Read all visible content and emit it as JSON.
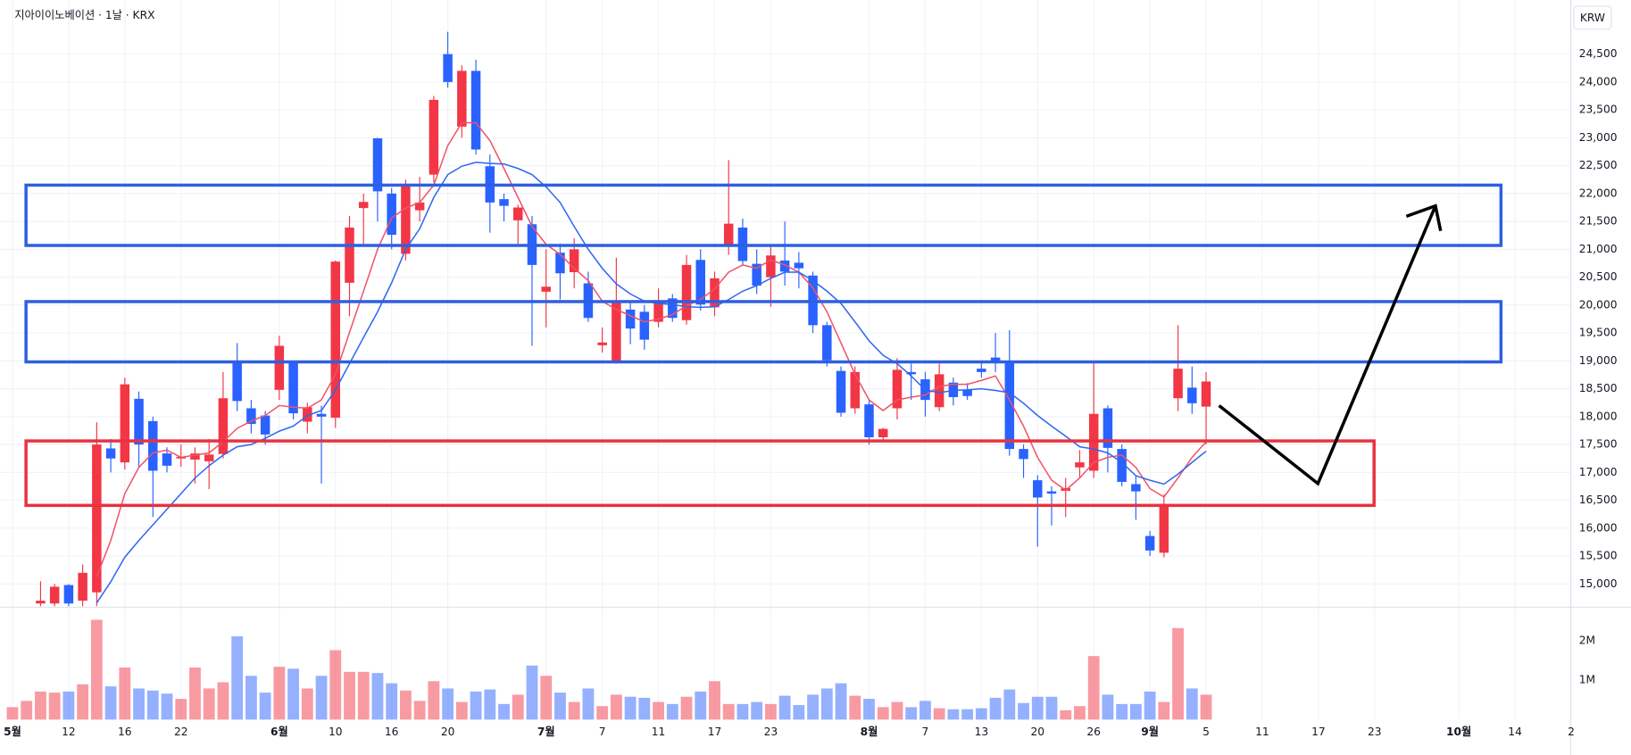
{
  "chart_data": {
    "type": "candlestick",
    "title": "지아이이노베이션 · 1날 · KRX",
    "currency": "KRW",
    "grid": true,
    "up_color": "#f23645",
    "down_color": "#2962ff",
    "categories": [
      "5월",
      null,
      null,
      null,
      "12",
      null,
      null,
      null,
      "16",
      null,
      null,
      null,
      "22",
      null,
      null,
      null,
      null,
      null,
      null,
      "6월",
      null,
      null,
      null,
      "10",
      null,
      null,
      null,
      "16",
      null,
      null,
      null,
      "20",
      null,
      null,
      null,
      null,
      null,
      null,
      "7월",
      null,
      null,
      null,
      "7",
      null,
      null,
      null,
      "11",
      null,
      null,
      null,
      "17",
      null,
      null,
      null,
      "23",
      null,
      null,
      null,
      null,
      null,
      null,
      "8월",
      null,
      null,
      null,
      "7",
      null,
      null,
      null,
      "13",
      null,
      null,
      null,
      "20",
      null,
      null,
      null,
      "26",
      null,
      null,
      null,
      "9월",
      null,
      null,
      null,
      "5",
      null,
      null,
      null,
      "11",
      null,
      null,
      null,
      "17",
      null,
      null,
      null,
      "23",
      null,
      null,
      null,
      null,
      null,
      "10월",
      null,
      null,
      null,
      "14",
      null,
      null,
      null,
      "2"
    ],
    "open": [
      null,
      null,
      14650,
      14650,
      14980,
      14700,
      14850,
      17430,
      17180,
      18320,
      17920,
      17340,
      17250,
      17230,
      17200,
      17330,
      18990,
      18150,
      18020,
      18480,
      18990,
      17910,
      18050,
      17980,
      20400,
      21740,
      22990,
      22000,
      20920,
      21700,
      22340,
      24500,
      23200,
      24200,
      22490,
      21900,
      21520,
      21450,
      20240,
      20940,
      20590,
      20390,
      19280,
      19000,
      19920,
      19880,
      19700,
      20120,
      19730,
      20810,
      19960,
      21050,
      21390,
      20740,
      20500,
      20800,
      20760,
      20530,
      19640,
      18820,
      18150,
      18220,
      17630,
      18150,
      18800,
      18670,
      18170,
      18610,
      18480,
      18860,
      19060,
      18990,
      17420,
      16860,
      16660,
      16670,
      17090,
      17030,
      18150,
      17420,
      16790,
      15860,
      15560,
      18330,
      18520,
      18180,
      null,
      null,
      null,
      null,
      null,
      null,
      null,
      null,
      null,
      null,
      null,
      null,
      null,
      null,
      null,
      null,
      null,
      null,
      null,
      null,
      null,
      null,
      null,
      null,
      null,
      null
    ],
    "high": [
      null,
      null,
      15050,
      15000,
      15000,
      15350,
      17900,
      17600,
      18700,
      18450,
      18000,
      17450,
      17500,
      17450,
      17600,
      18800,
      19320,
      18300,
      18100,
      19450,
      19000,
      18250,
      18200,
      20800,
      21600,
      22000,
      23000,
      22100,
      22250,
      22300,
      23750,
      24900,
      24300,
      24400,
      22700,
      22000,
      21800,
      21600,
      21000,
      21100,
      21200,
      20600,
      19600,
      20850,
      20050,
      20000,
      20300,
      20200,
      20900,
      21000,
      20600,
      22600,
      21550,
      21000,
      21050,
      21500,
      20950,
      20600,
      19700,
      18900,
      18900,
      18300,
      17800,
      19050,
      18950,
      18800,
      18950,
      18700,
      18600,
      19000,
      19500,
      19550,
      17500,
      16950,
      16750,
      16900,
      17400,
      18990,
      18200,
      17500,
      16950,
      15950,
      16600,
      19640,
      18900,
      18800,
      null,
      null,
      null,
      null,
      null,
      null,
      null,
      null,
      null,
      null,
      null,
      null,
      null,
      null,
      null,
      null,
      null,
      null,
      null,
      null,
      null,
      null,
      null,
      null,
      null,
      null
    ],
    "low": [
      null,
      null,
      14600,
      14600,
      14600,
      14600,
      14600,
      17000,
      17050,
      17100,
      16200,
      17000,
      17100,
      16800,
      16700,
      17250,
      18100,
      17700,
      17500,
      18300,
      17950,
      17700,
      16800,
      17800,
      19800,
      21100,
      21500,
      21000,
      20800,
      21500,
      22200,
      23900,
      23000,
      22700,
      21300,
      21500,
      21100,
      19270,
      19600,
      20100,
      20300,
      19700,
      19150,
      18950,
      19300,
      19200,
      19600,
      19700,
      19650,
      19900,
      19800,
      20900,
      20700,
      20200,
      19970,
      20350,
      20300,
      19500,
      18900,
      18000,
      18050,
      17500,
      17550,
      17950,
      18300,
      18000,
      18100,
      18200,
      18300,
      18700,
      18800,
      17300,
      16900,
      15670,
      16050,
      16200,
      16900,
      16900,
      17000,
      16750,
      16150,
      15500,
      15480,
      18100,
      18050,
      17500,
      null,
      null,
      null,
      null,
      null,
      null,
      null,
      null,
      null,
      null,
      null,
      null,
      null,
      null,
      null,
      null,
      null,
      null,
      null,
      null,
      null,
      null,
      null,
      null,
      null,
      null
    ],
    "close": [
      null,
      null,
      14700,
      14950,
      14650,
      15200,
      17500,
      17250,
      18580,
      17500,
      17030,
      17120,
      17280,
      17340,
      17320,
      18330,
      18280,
      17870,
      17680,
      19270,
      18060,
      18170,
      18000,
      20780,
      21390,
      21850,
      22040,
      21260,
      22150,
      21840,
      23680,
      24000,
      24200,
      22790,
      21840,
      21780,
      21750,
      20720,
      20330,
      20570,
      21000,
      19770,
      19330,
      20070,
      19580,
      19380,
      20070,
      19770,
      20720,
      20010,
      20480,
      21460,
      20790,
      20350,
      20890,
      20600,
      20660,
      19640,
      19010,
      18070,
      18800,
      17630,
      17780,
      18840,
      18760,
      18300,
      18760,
      18350,
      18370,
      18800,
      18980,
      17420,
      17240,
      16550,
      16620,
      16720,
      17180,
      18050,
      17440,
      16830,
      16660,
      15600,
      16420,
      18860,
      18240,
      18630,
      null,
      null,
      null,
      null,
      null,
      null,
      null,
      null,
      null,
      null,
      null,
      null,
      null,
      null,
      null,
      null,
      null,
      null,
      null,
      null,
      null,
      null,
      null,
      null,
      null,
      null
    ],
    "volume": [
      316000,
      474000,
      711000,
      684000,
      711000,
      895000,
      2530000,
      842000,
      1320000,
      789000,
      737000,
      658000,
      526000,
      1320000,
      789000,
      947000,
      2110000,
      1110000,
      684000,
      1340000,
      1290000,
      789000,
      1110000,
      1760000,
      1210000,
      1210000,
      1180000,
      921000,
      737000,
      474000,
      974000,
      789000,
      447000,
      711000,
      763000,
      395000,
      632000,
      1370000,
      1110000,
      684000,
      447000,
      789000,
      342000,
      632000,
      579000,
      553000,
      447000,
      395000,
      579000,
      711000,
      974000,
      395000,
      395000,
      447000,
      395000,
      605000,
      368000,
      632000,
      789000,
      921000,
      605000,
      526000,
      316000,
      447000,
      316000,
      474000,
      289000,
      263000,
      263000,
      289000,
      553000,
      763000,
      421000,
      579000,
      579000,
      237000,
      342000,
      1610000,
      632000,
      395000,
      395000,
      711000,
      447000,
      2320000,
      789000,
      632000,
      null,
      null,
      null,
      null,
      null,
      null,
      null,
      null,
      null,
      null,
      null,
      null,
      null,
      null,
      null,
      null,
      null,
      null,
      null,
      null,
      null,
      null,
      null,
      null,
      null,
      null
    ],
    "ma": [
      {
        "color": "#f05366",
        "values": [
          null,
          null,
          null,
          null,
          null,
          null,
          15130,
          15780,
          16620,
          17090,
          17350,
          17400,
          17270,
          17310,
          17350,
          17550,
          17790,
          17920,
          18020,
          18200,
          18170,
          18150,
          18300,
          18760,
          19510,
          20250,
          21000,
          21560,
          21740,
          21840,
          22150,
          22860,
          23270,
          23270,
          22950,
          22450,
          21930,
          21410,
          21090,
          20910,
          20660,
          20440,
          20070,
          19920,
          19810,
          19700,
          19750,
          19830,
          19990,
          20100,
          20290,
          20590,
          20720,
          20660,
          20810,
          20720,
          20590,
          20310,
          19880,
          19320,
          18760,
          18300,
          18110,
          18300,
          18350,
          18390,
          18540,
          18580,
          18580,
          18650,
          18730,
          18300,
          17830,
          17270,
          16860,
          16680,
          16900,
          17180,
          17270,
          17310,
          17090,
          16710,
          16560,
          16900,
          17270,
          17550,
          null,
          null,
          null,
          null,
          null,
          null,
          null,
          null,
          null,
          null,
          null,
          null,
          null,
          null,
          null,
          null,
          null,
          null,
          null,
          null,
          null,
          null,
          null,
          null,
          null,
          null
        ]
      },
      {
        "color": "#2f66f0",
        "values": [
          null,
          null,
          null,
          null,
          null,
          null,
          14660,
          15040,
          15480,
          15780,
          16060,
          16340,
          16620,
          16900,
          17120,
          17310,
          17460,
          17500,
          17610,
          17740,
          17830,
          18020,
          18110,
          18480,
          18950,
          19420,
          19880,
          20400,
          21000,
          21370,
          21930,
          22340,
          22490,
          22560,
          22540,
          22530,
          22450,
          22340,
          22120,
          21840,
          21410,
          21000,
          20660,
          20380,
          20200,
          20070,
          20030,
          20010,
          19970,
          19960,
          19970,
          20100,
          20250,
          20350,
          20480,
          20590,
          20590,
          20440,
          20250,
          20030,
          19700,
          19360,
          19100,
          18950,
          18730,
          18480,
          18430,
          18470,
          18480,
          18500,
          18470,
          18430,
          18240,
          18020,
          17830,
          17650,
          17460,
          17420,
          17350,
          17180,
          16940,
          16860,
          16790,
          16970,
          17180,
          17380,
          null,
          null,
          null,
          null,
          null,
          null,
          null,
          null,
          null,
          null,
          null,
          null,
          null,
          null,
          null,
          null,
          null,
          null,
          null,
          null,
          null,
          null,
          null,
          null,
          null,
          null
        ]
      }
    ],
    "ylim": [
      14600,
      25470
    ],
    "yticks": [
      {
        "value": 15000,
        "label": "15,000"
      },
      {
        "value": 15500,
        "label": "15,500"
      },
      {
        "value": 16000,
        "label": "16,000"
      },
      {
        "value": 16500,
        "label": "16,500"
      },
      {
        "value": 17000,
        "label": "17,000"
      },
      {
        "value": 17500,
        "label": "17,500"
      },
      {
        "value": 18000,
        "label": "18,000"
      },
      {
        "value": 18500,
        "label": "18,500"
      },
      {
        "value": 19000,
        "label": "19,000"
      },
      {
        "value": 19500,
        "label": "19,500"
      },
      {
        "value": 20000,
        "label": "20,000"
      },
      {
        "value": 20500,
        "label": "20,500"
      },
      {
        "value": 21000,
        "label": "21,000"
      },
      {
        "value": 21500,
        "label": "21,500"
      },
      {
        "value": 22000,
        "label": "22,000"
      },
      {
        "value": 22500,
        "label": "22,500"
      },
      {
        "value": 23000,
        "label": "23,000"
      },
      {
        "value": 23500,
        "label": "23,500"
      },
      {
        "value": 24000,
        "label": "24,000"
      },
      {
        "value": 24500,
        "label": "24,500"
      }
    ],
    "volume_ylim": [
      0,
      2820000
    ],
    "volume_ticks": [
      {
        "value": 1000000,
        "label": "1M"
      },
      {
        "value": 2000000,
        "label": "2M"
      }
    ]
  }
}
